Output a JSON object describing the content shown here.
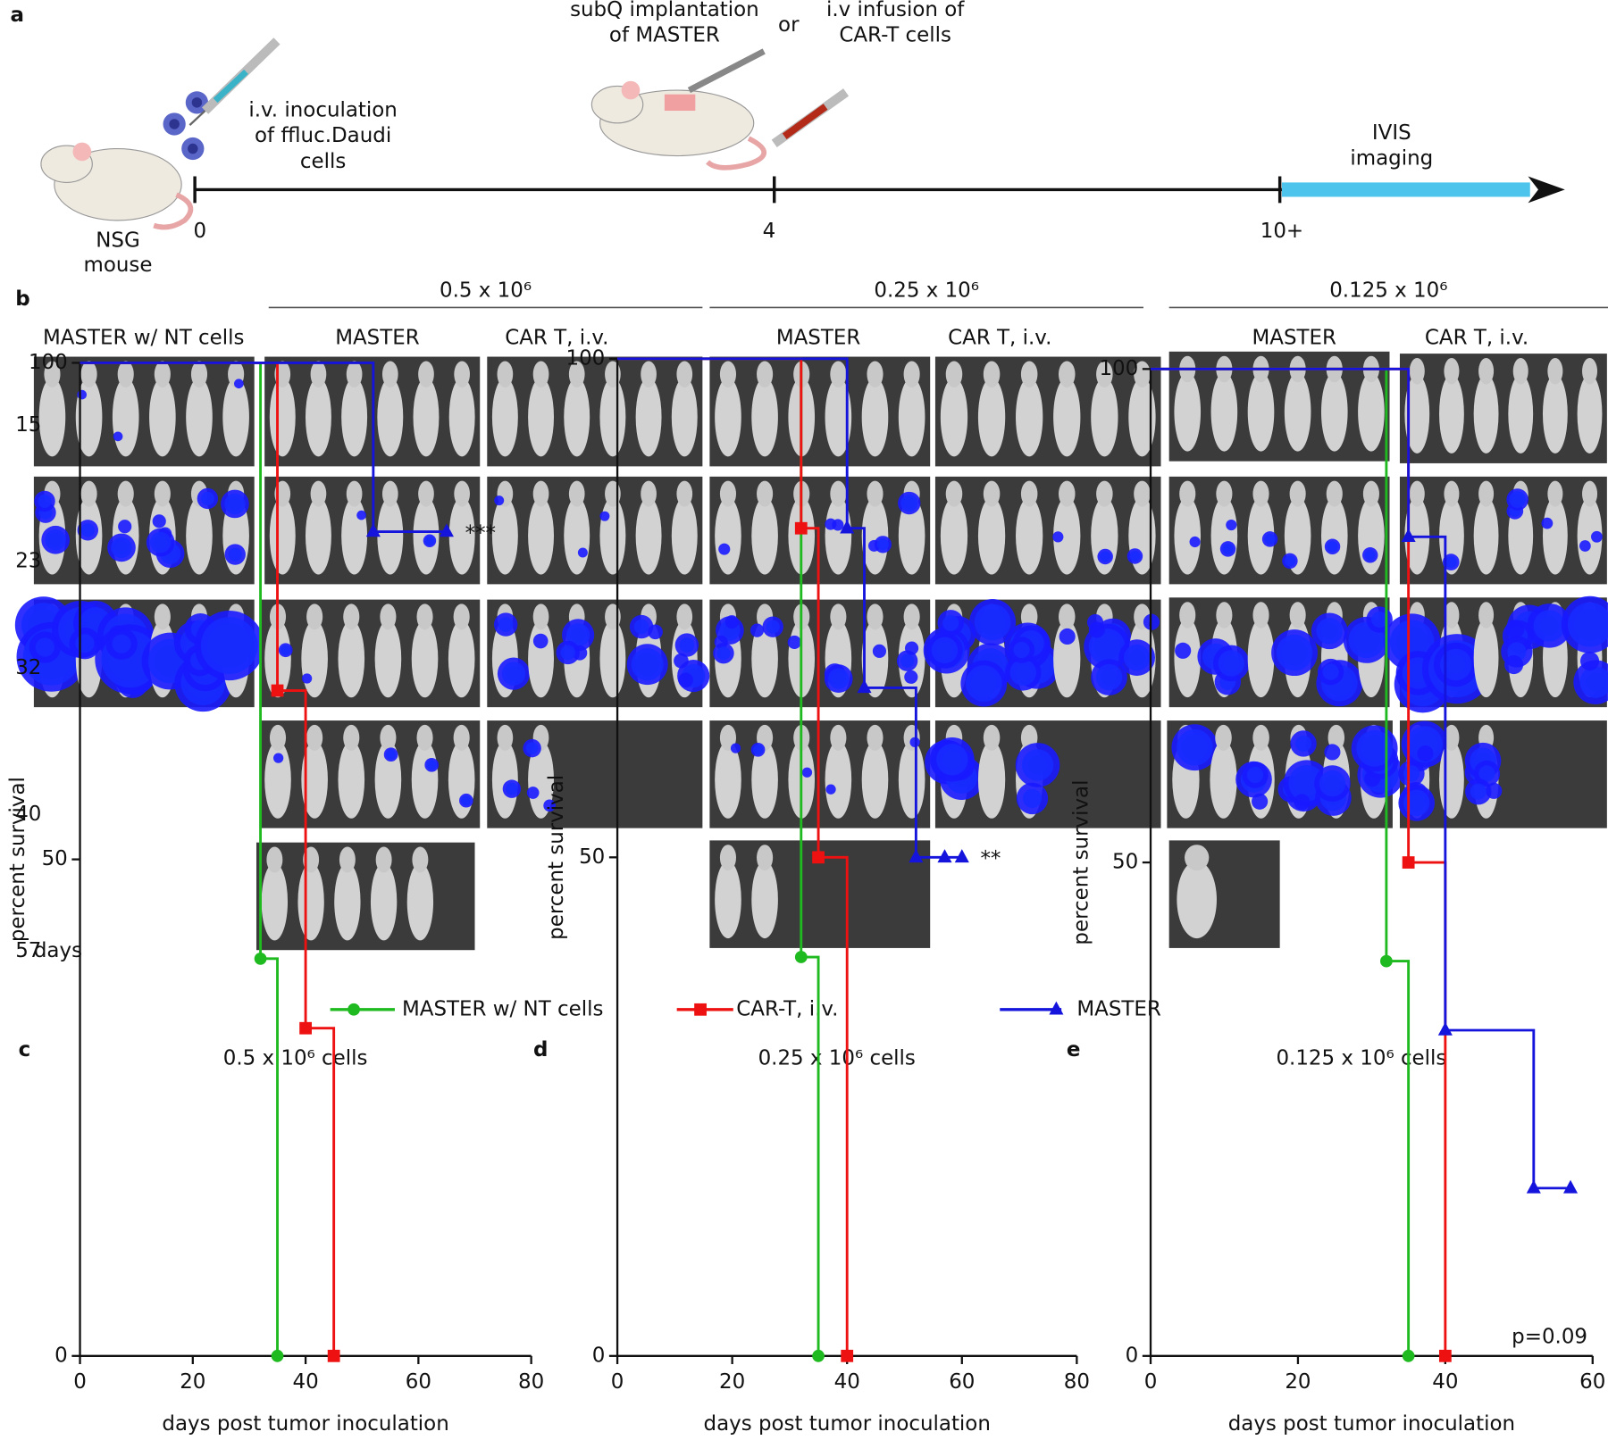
{
  "panel_a": {
    "letter": "a",
    "mouse_label": [
      "NSG",
      "mouse"
    ],
    "inoculation": [
      "i.v. inoculation",
      "of ffluc.Daudi",
      "cells"
    ],
    "implantation": [
      "subQ implantation",
      "of MASTER"
    ],
    "or": "or",
    "infusion": [
      "i.v infusion of",
      "CAR-T cells"
    ],
    "imaging": [
      "IVIS",
      "imaging"
    ],
    "timeline": [
      "0",
      "4",
      "10+"
    ]
  },
  "panel_b": {
    "letter": "b",
    "groups": [
      "0.5 x 10⁶",
      "0.25 x 10⁶",
      "0.125 x 10⁶"
    ],
    "columns": [
      "MASTER w/ NT cells",
      "MASTER",
      "CAR T, i.v.",
      "MASTER",
      "CAR T, i.v.",
      "MASTER",
      "CAR T, i.v."
    ],
    "rows": [
      "15",
      "23",
      "32",
      "40",
      "57"
    ],
    "unit": "days"
  },
  "chart_data": [
    {
      "type": "line",
      "step": true,
      "panel": "c",
      "title": "0.5 x 10⁶ cells",
      "xlabel": "days post tumor inoculation",
      "ylabel": "percent survival",
      "xlim": [
        0,
        80
      ],
      "ylim": [
        0,
        100
      ],
      "xticks": [
        0,
        20,
        40,
        60,
        80
      ],
      "yticks": [
        0,
        50,
        100
      ],
      "annotation": "***",
      "series": [
        {
          "name": "MASTER w/ NT cells",
          "color": "#1fba1f",
          "marker": "circle",
          "x": [
            0,
            32,
            35
          ],
          "values": [
            100,
            40,
            0
          ]
        },
        {
          "name": "CAR-T, i.v.",
          "color": "#ee1111",
          "marker": "square",
          "x": [
            0,
            35,
            40,
            45
          ],
          "values": [
            100,
            67,
            33,
            0
          ]
        },
        {
          "name": "MASTER",
          "color": "#1414dd",
          "marker": "triangle",
          "x": [
            0,
            52,
            65
          ],
          "values": [
            100,
            83,
            83
          ]
        }
      ]
    },
    {
      "type": "line",
      "step": true,
      "panel": "d",
      "title": "0.25 x 10⁶ cells",
      "xlabel": "days post tumor inoculation",
      "ylabel": "percent survival",
      "xlim": [
        0,
        80
      ],
      "ylim": [
        0,
        100
      ],
      "xticks": [
        0,
        20,
        40,
        60,
        80
      ],
      "yticks": [
        0,
        50,
        100
      ],
      "annotation": "**",
      "series": [
        {
          "name": "MASTER w/ NT cells",
          "color": "#1fba1f",
          "marker": "circle",
          "x": [
            0,
            32,
            35
          ],
          "values": [
            100,
            40,
            0
          ]
        },
        {
          "name": "CAR-T, i.v.",
          "color": "#ee1111",
          "marker": "square",
          "x": [
            0,
            32,
            35,
            40
          ],
          "values": [
            100,
            83,
            50,
            0
          ]
        },
        {
          "name": "MASTER",
          "color": "#1414dd",
          "marker": "triangle",
          "x": [
            0,
            40,
            43,
            52,
            57,
            60
          ],
          "values": [
            100,
            83,
            67,
            50,
            50,
            50
          ]
        }
      ]
    },
    {
      "type": "line",
      "step": true,
      "panel": "e",
      "title": "0.125 x 10⁶ cells",
      "xlabel": "days post tumor inoculation",
      "ylabel": "percent survival",
      "xlim": [
        0,
        60
      ],
      "ylim": [
        0,
        100
      ],
      "xticks": [
        0,
        20,
        40,
        60
      ],
      "yticks": [
        0,
        50,
        100
      ],
      "annotation": "p=0.09",
      "series": [
        {
          "name": "MASTER w/ NT cells",
          "color": "#1fba1f",
          "marker": "circle",
          "x": [
            0,
            32,
            35
          ],
          "values": [
            100,
            40,
            0
          ]
        },
        {
          "name": "CAR-T, i.v.",
          "color": "#ee1111",
          "marker": "square",
          "x": [
            0,
            35,
            40
          ],
          "values": [
            100,
            50,
            0
          ]
        },
        {
          "name": "MASTER",
          "color": "#1414dd",
          "marker": "triangle",
          "x": [
            0,
            35,
            40,
            52,
            57
          ],
          "values": [
            100,
            83,
            33,
            17,
            17
          ]
        }
      ]
    }
  ]
}
